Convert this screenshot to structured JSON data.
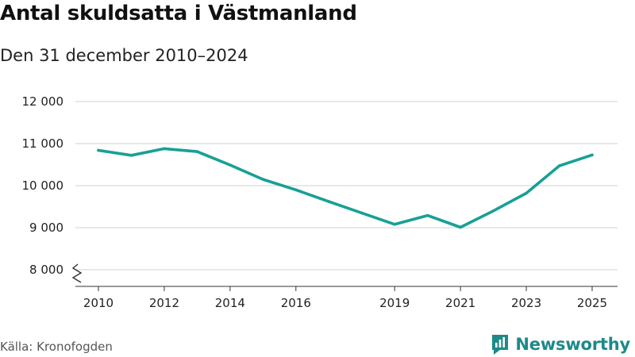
{
  "title": "Antal skuldsatta i Västmanland",
  "subtitle": "Den 31 december 2010–2024",
  "source": "Källa: Kronofogden",
  "brand": {
    "name": "Newsworthy",
    "icon": "bar-chart-logo-icon"
  },
  "colors": {
    "line": "#18a096",
    "grid": "#d9d9d9",
    "axis": "#333333",
    "brand": "#1d8a88"
  },
  "chart_data": {
    "type": "line",
    "title": "Antal skuldsatta i Västmanland",
    "subtitle": "Den 31 december 2010–2024",
    "xlabel": "",
    "ylabel": "",
    "xlim": [
      2010,
      2025
    ],
    "ylim": [
      8000,
      12000
    ],
    "y_axis_break": true,
    "grid": true,
    "x_ticks": [
      {
        "value": 2010,
        "label": "2010"
      },
      {
        "value": 2012,
        "label": "2012"
      },
      {
        "value": 2014,
        "label": "2014"
      },
      {
        "value": 2016,
        "label": "2016"
      },
      {
        "value": 2019,
        "label": "2019"
      },
      {
        "value": 2021,
        "label": "2021"
      },
      {
        "value": 2023,
        "label": "2023"
      },
      {
        "value": 2025,
        "label": "2025"
      }
    ],
    "y_ticks": [
      {
        "value": 8000,
        "label": "8 000"
      },
      {
        "value": 9000,
        "label": "9 000"
      },
      {
        "value": 10000,
        "label": "10 000"
      },
      {
        "value": 11000,
        "label": "11 000"
      },
      {
        "value": 12000,
        "label": "12 000"
      }
    ],
    "series": [
      {
        "name": "Antal skuldsatta",
        "x": [
          2010,
          2011,
          2012,
          2013,
          2014,
          2015,
          2016,
          2017,
          2018,
          2019,
          2020,
          2021,
          2022,
          2023,
          2024,
          2025
        ],
        "y": [
          10840,
          10720,
          10880,
          10810,
          10490,
          10150,
          9900,
          9620,
          9350,
          9080,
          9290,
          9010,
          9400,
          9820,
          10470,
          10730
        ]
      }
    ]
  }
}
